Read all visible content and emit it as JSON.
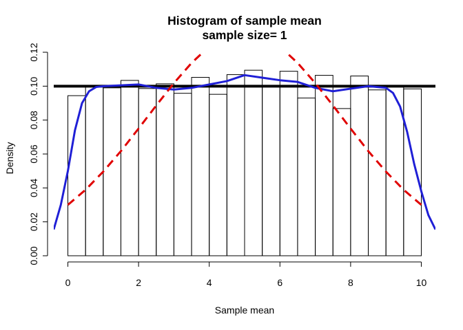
{
  "chart_data": {
    "type": "histogram",
    "title": "Histogram of sample mean",
    "subtitle": "sample size= 1",
    "xlabel": "Sample mean",
    "ylabel": "Density",
    "xlim": [
      -0.4,
      10.4
    ],
    "ylim": [
      0,
      0.12
    ],
    "x_ticks": [
      0,
      2,
      4,
      6,
      8,
      10
    ],
    "y_ticks": [
      0.0,
      0.02,
      0.04,
      0.06,
      0.08,
      0.1,
      0.12
    ],
    "y_tick_labels": [
      "0.00",
      "0.02",
      "0.04",
      "0.06",
      "0.08",
      "0.10",
      "0.12"
    ],
    "bin_width": 0.5,
    "bins_start": 0,
    "bar_heights": [
      0.0944,
      0.1,
      0.099,
      0.1034,
      0.0986,
      0.1014,
      0.0958,
      0.1052,
      0.0952,
      0.1068,
      0.1094,
      0.0996,
      0.1088,
      0.093,
      0.1064,
      0.0868,
      0.106,
      0.0978,
      0.1,
      0.0984
    ],
    "series": [
      {
        "kind": "uniform_density",
        "color": "#000000",
        "style": "solid",
        "x": [
          -0.4,
          10.4
        ],
        "y": [
          0.1,
          0.1
        ]
      },
      {
        "kind": "kernel_density",
        "color": "#1f1fd6",
        "style": "solid",
        "x": [
          -0.4,
          -0.2,
          0.0,
          0.2,
          0.4,
          0.6,
          0.8,
          1.0,
          1.5,
          2.0,
          2.5,
          3.0,
          3.5,
          4.0,
          4.5,
          5.0,
          5.5,
          6.0,
          6.5,
          7.0,
          7.5,
          8.0,
          8.5,
          9.0,
          9.2,
          9.4,
          9.6,
          9.8,
          10.0,
          10.2,
          10.4
        ],
        "y": [
          0.0155,
          0.03,
          0.05,
          0.074,
          0.09,
          0.097,
          0.0995,
          0.1,
          0.1005,
          0.101,
          0.099,
          0.098,
          0.099,
          0.101,
          0.103,
          0.1065,
          0.105,
          0.1035,
          0.1025,
          0.099,
          0.097,
          0.0985,
          0.1,
          0.099,
          0.096,
          0.088,
          0.073,
          0.054,
          0.038,
          0.024,
          0.0155
        ]
      },
      {
        "kind": "normal_density",
        "color": "#e00000",
        "style": "dashed",
        "x": [
          0,
          0.5,
          1.0,
          1.5,
          2.0,
          2.5,
          3.0,
          3.5,
          4.0,
          4.5,
          5.0,
          5.5,
          6.0,
          6.5,
          7.0,
          7.5,
          8.0,
          8.5,
          9.0,
          9.5,
          10.0
        ],
        "y": [
          0.03,
          0.0389,
          0.0496,
          0.0617,
          0.075,
          0.0886,
          0.1018,
          0.1137,
          0.1234,
          0.1299,
          0.1322,
          0.1299,
          0.1234,
          0.1137,
          0.1018,
          0.0886,
          0.075,
          0.0617,
          0.0496,
          0.0389,
          0.03
        ]
      }
    ],
    "grid": false,
    "legend": "none"
  }
}
